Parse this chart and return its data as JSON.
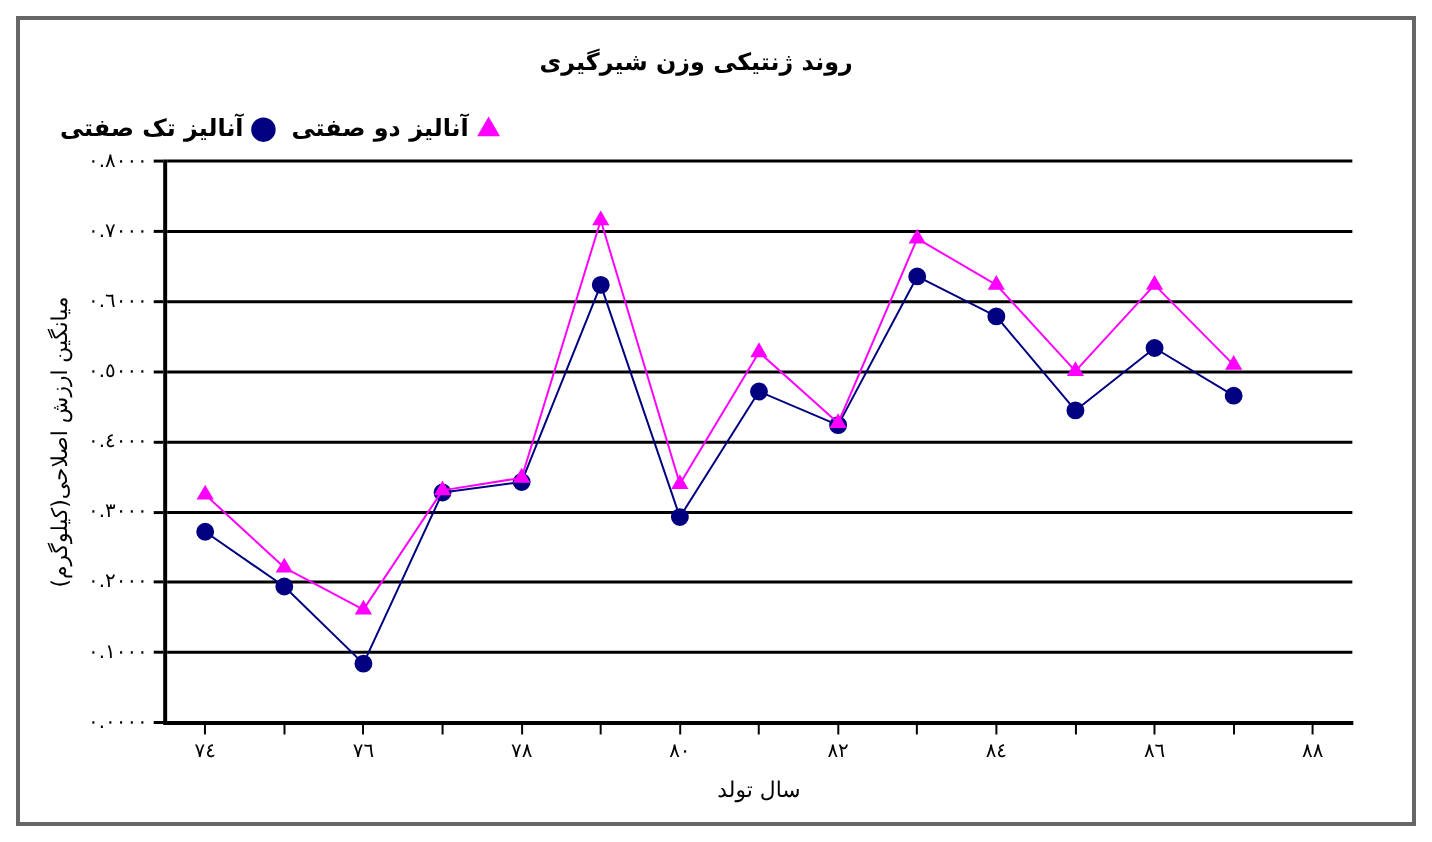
{
  "chart_data": {
    "type": "line",
    "title": "روند ژنتیکی وزن شیرگیری",
    "xlabel": "سال تولد",
    "ylabel": "میانگین ارزش اصلاحی(کیلوگرم)",
    "categories": [
      "٧٤",
      null,
      "٧٦",
      null,
      "٧٨",
      null,
      "٨٠",
      null,
      "٨٢",
      null,
      "٨٤",
      null,
      "٨٦",
      null,
      "٨٨"
    ],
    "series": [
      {
        "name": "آنالیز تک صفتی",
        "color": "#000080",
        "marker": "circle",
        "values": [
          0.272,
          0.194,
          0.084,
          0.328,
          0.343,
          0.624,
          0.293,
          0.472,
          0.424,
          0.636,
          0.579,
          0.445,
          0.534,
          0.466,
          null
        ]
      },
      {
        "name": "آنالیز دو صفتی",
        "color": "#ff00ff",
        "marker": "triangle",
        "values": [
          0.325,
          0.221,
          0.161,
          0.331,
          0.349,
          0.716,
          0.34,
          0.528,
          0.427,
          0.69,
          0.624,
          0.501,
          0.624,
          0.51,
          null
        ]
      }
    ],
    "ylim": [
      0,
      0.8
    ],
    "yticks": [
      {
        "value": 0,
        "label": "٠.٠٠٠٠"
      },
      {
        "value": 0.1,
        "label": "٠.١٠٠٠"
      },
      {
        "value": 0.2,
        "label": "٠.٢٠٠٠"
      },
      {
        "value": 0.3,
        "label": "٠.٣٠٠٠"
      },
      {
        "value": 0.4,
        "label": "٠.٤٠٠٠"
      },
      {
        "value": 0.5,
        "label": "٠.٥٠٠٠"
      },
      {
        "value": 0.6,
        "label": "٠.٦٠٠٠"
      },
      {
        "value": 0.7,
        "label": "٠.٧٠٠٠"
      },
      {
        "value": 0.8,
        "label": "٠.٨٠٠٠"
      }
    ],
    "grid": "y",
    "legend": "top left",
    "line_style": "solid"
  }
}
